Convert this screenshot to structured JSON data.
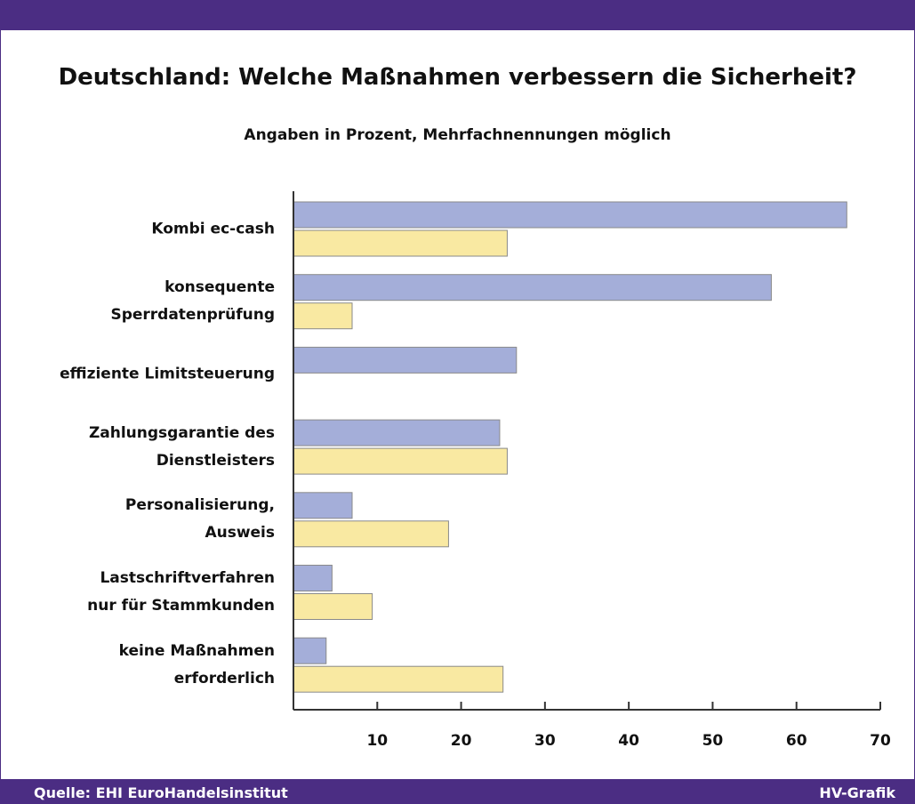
{
  "chart_data": {
    "type": "bar",
    "orientation": "horizontal",
    "title": "Deutschland: Welche Maßnahmen verbessern die Sicherheit?",
    "subtitle": "Angaben in Prozent, Mehrfachnennungen möglich",
    "categories": [
      "Kombi ec-cash",
      "konsequente\nSperrdatenprüfung",
      "effiziente Limitsteuerung",
      "Zahlungsgarantie des\nDienstleisters",
      "Personalisierung,\nAusweis",
      "Lastschriftverfahren\nnur für Stammkunden",
      "keine Maßnahmen\nerforderlich"
    ],
    "series": [
      {
        "color": "#a4aed9",
        "values": [
          66,
          57,
          26.6,
          24.6,
          7,
          4.6,
          3.9
        ]
      },
      {
        "color": "#f9e9a2",
        "values": [
          25.5,
          7,
          null,
          25.5,
          18.5,
          9.4,
          25
        ]
      }
    ],
    "xlim": [
      0,
      70
    ],
    "xticks": [
      10,
      20,
      30,
      40,
      50,
      60,
      70
    ],
    "source": "Quelle: EHI EuroHandelsinstitut",
    "credit": "HV-Grafik"
  }
}
